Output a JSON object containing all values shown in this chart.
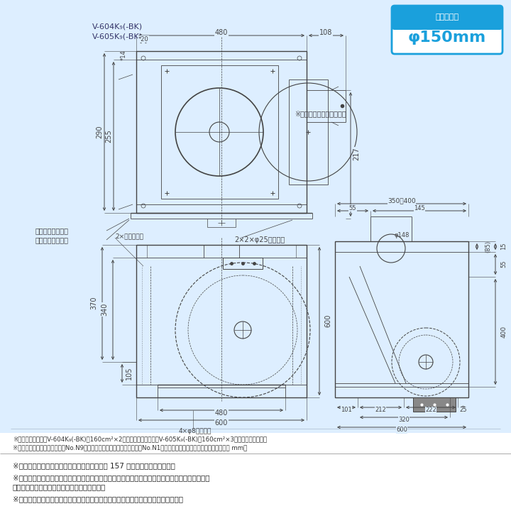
{
  "bg_color": "#ddeeff",
  "draw_bg": "#e8f4fb",
  "white_bg": "#ffffff",
  "title_model1": "V-604K₉(-BK)",
  "title_model2": "V-605K₉(-BK)",
  "badge_line1": "接続パイプ",
  "badge_line2": "φ150mm",
  "badge_bg": "#1aa0dc",
  "badge_border": "#ffffff",
  "note_duct": "※はダクト接続口可動寸法",
  "note_rear": "後・上配管の場合",
  "note_right": "右・左配管の場合",
  "note_holes_top": "2×2×φ25天吹用穴",
  "note_body_fix": "2×本体仮止穴",
  "note_mount": "4×φ8取付用穴",
  "footnote1": "※グリル開口面積はV-604K₉(-BK)　160cm²×2枚（フィルター部）、V-605K₉(-BK)　160cm²×3枚（フィルター部）",
  "footnote2": "※色調は（ホワイト）マンセルNo.N9（近似色）、（ブラック）マンセルNo.N1（近似色）（但し半ツヤ相当品）　（単位 mm）",
  "bottom_text1": "※電動給気シャッターとの結線方法については 157 ページをご覧ください。",
  "bottom_text2": "※電動給気シャッターに接続する場合は、別売の電動給気シャッター連動コードを商品本体の連動",
  "bottom_text2b": "　出力接続用コネクターに接続してください。",
  "bottom_text3": "※レンジフードファンの設置にあたっては火災予防条例をはじめ法規制があります。",
  "line_color": "#444444",
  "dim_color": "#444444"
}
